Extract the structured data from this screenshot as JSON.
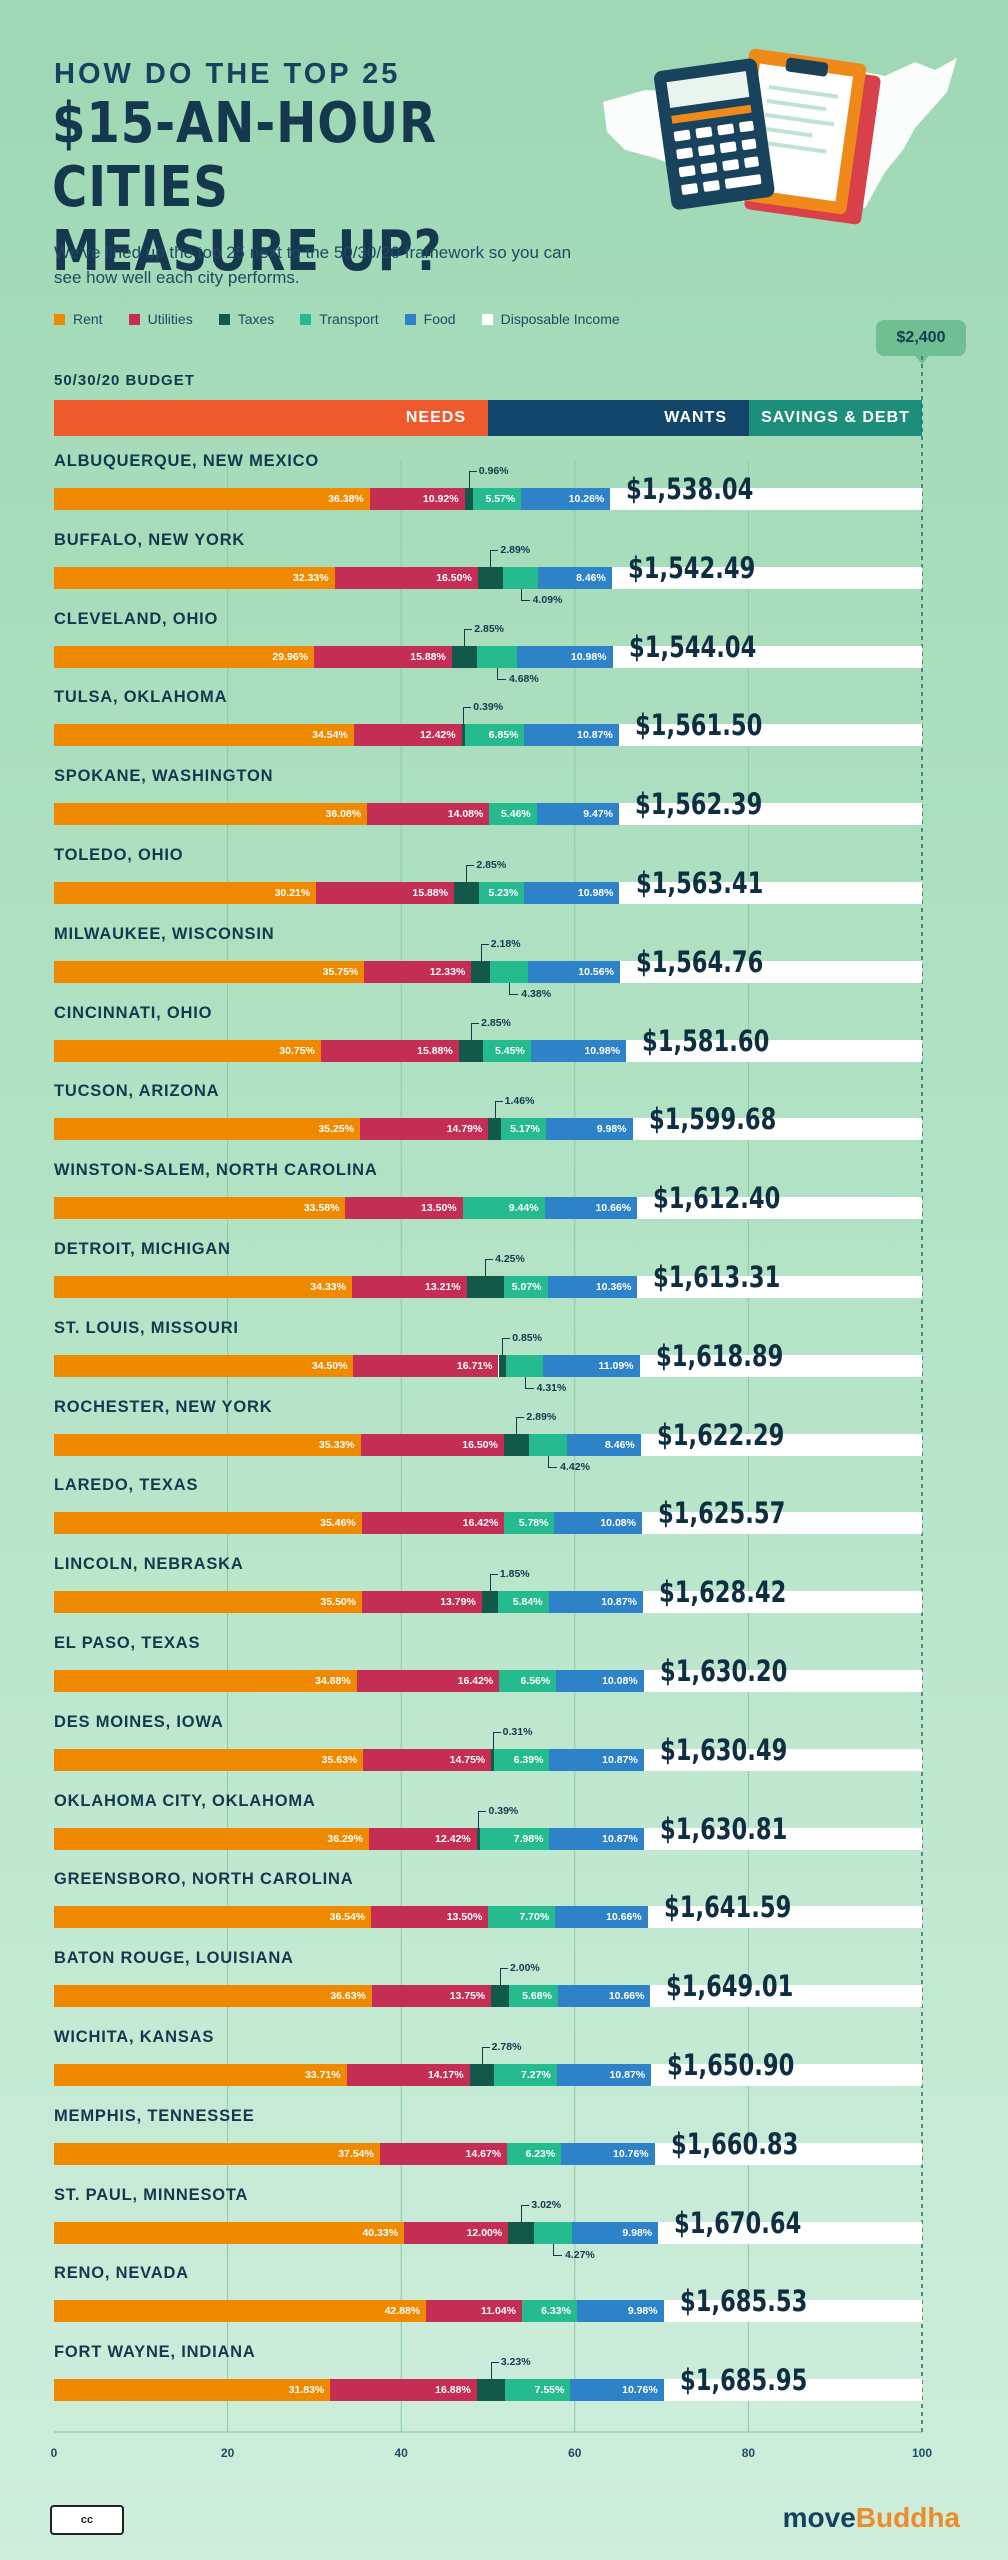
{
  "header": {
    "kicker": "HOW DO THE TOP 25",
    "title": "$15-AN-HOUR CITIES MEASURE UP?",
    "subtitle": "We've lined up the top 25 next to the 50/30/20 framework so you can see how well each city performs."
  },
  "legend": [
    {
      "label": "Rent",
      "color": "#ef8a00"
    },
    {
      "label": "Utilities",
      "color": "#c42e55"
    },
    {
      "label": "Taxes",
      "color": "#13594a"
    },
    {
      "label": "Transport",
      "color": "#25bb8f"
    },
    {
      "label": "Food",
      "color": "#2d82c8"
    },
    {
      "label": "Disposable Income",
      "color": "#ffffff"
    }
  ],
  "max_label": "$2,400",
  "budget": {
    "label": "50/30/20 BUDGET",
    "needs": "NEEDS",
    "wants": "WANTS",
    "savings": "SAVINGS & DEBT",
    "colors": {
      "needs": "#ee5a2c",
      "wants": "#11466a",
      "savings": "#1e8e7c"
    }
  },
  "chart_data": {
    "type": "bar",
    "orientation": "horizontal-stacked",
    "x_ticks": [
      "0",
      "20",
      "40",
      "60",
      "80",
      "100"
    ],
    "xlim": [
      0,
      100
    ],
    "series": [
      "Rent",
      "Utilities",
      "Taxes",
      "Transport",
      "Food",
      "Disposable Income"
    ],
    "rows": [
      {
        "city": "ALBUQUERQUE, NEW MEXICO",
        "rent": 36.38,
        "util": 10.92,
        "tax": 0.96,
        "trans": 5.57,
        "food": 10.26,
        "total": "$1,538.04",
        "labels": {
          "rent": "36.38%",
          "util": "10.92%",
          "tax": "0.96%",
          "trans": "5.57%",
          "food": "10.26%"
        },
        "tax_callout": "above",
        "trans_callout": "none"
      },
      {
        "city": "BUFFALO, NEW YORK",
        "rent": 32.33,
        "util": 16.5,
        "tax": 2.89,
        "trans": 4.09,
        "food": 8.46,
        "total": "$1,542.49",
        "labels": {
          "rent": "32.33%",
          "util": "16.50%",
          "tax": "2.89%",
          "trans": "4.09%",
          "food": "8.46%"
        },
        "tax_callout": "above",
        "trans_callout": "below"
      },
      {
        "city": "CLEVELAND, OHIO",
        "rent": 29.96,
        "util": 15.88,
        "tax": 2.85,
        "trans": 4.68,
        "food": 10.98,
        "total": "$1,544.04",
        "labels": {
          "rent": "29.96%",
          "util": "15.88%",
          "tax": "2.85%",
          "trans": "4.68%",
          "food": "10.98%"
        },
        "tax_callout": "above",
        "trans_callout": "below"
      },
      {
        "city": "TULSA, OKLAHOMA",
        "rent": 34.54,
        "util": 12.42,
        "tax": 0.39,
        "trans": 6.85,
        "food": 10.87,
        "total": "$1,561.50",
        "labels": {
          "rent": "34.54%",
          "util": "12.42%",
          "tax": "0.39%",
          "trans": "6.85%",
          "food": "10.87%"
        },
        "tax_callout": "above",
        "trans_callout": "none"
      },
      {
        "city": "SPOKANE, WASHINGTON",
        "rent": 36.08,
        "util": 14.08,
        "tax": 0,
        "trans": 5.46,
        "food": 9.47,
        "total": "$1,562.39",
        "labels": {
          "rent": "36.08%",
          "util": "14.08%",
          "tax": "",
          "trans": "5.46%",
          "food": "9.47%"
        },
        "tax_callout": "none",
        "trans_callout": "none"
      },
      {
        "city": "TOLEDO, OHIO",
        "rent": 30.21,
        "util": 15.88,
        "tax": 2.85,
        "trans": 5.23,
        "food": 10.98,
        "total": "$1,563.41",
        "labels": {
          "rent": "30.21%",
          "util": "15.88%",
          "tax": "2.85%",
          "trans": "5.23%",
          "food": "10.98%"
        },
        "tax_callout": "above",
        "trans_callout": "none"
      },
      {
        "city": "MILWAUKEE, WISCONSIN",
        "rent": 35.75,
        "util": 12.33,
        "tax": 2.18,
        "trans": 4.38,
        "food": 10.56,
        "total": "$1,564.76",
        "labels": {
          "rent": "35.75%",
          "util": "12.33%",
          "tax": "2.18%",
          "trans": "4.38%",
          "food": "10.56%"
        },
        "tax_callout": "above",
        "trans_callout": "below"
      },
      {
        "city": "CINCINNATI, OHIO",
        "rent": 30.75,
        "util": 15.88,
        "tax": 2.85,
        "trans": 5.45,
        "food": 10.98,
        "total": "$1,581.60",
        "labels": {
          "rent": "30.75%",
          "util": "15.88%",
          "tax": "2.85%",
          "trans": "5.45%",
          "food": "10.98%"
        },
        "tax_callout": "above",
        "trans_callout": "none"
      },
      {
        "city": "TUCSON, ARIZONA",
        "rent": 35.25,
        "util": 14.79,
        "tax": 1.46,
        "trans": 5.17,
        "food": 9.98,
        "total": "$1,599.68",
        "labels": {
          "rent": "35.25%",
          "util": "14.79%",
          "tax": "1.46%",
          "trans": "5.17%",
          "food": "9.98%"
        },
        "tax_callout": "above",
        "trans_callout": "none"
      },
      {
        "city": "WINSTON-SALEM, NORTH CAROLINA",
        "rent": 33.58,
        "util": 13.5,
        "tax": 0,
        "trans": 9.44,
        "food": 10.66,
        "total": "$1,612.40",
        "labels": {
          "rent": "33.58%",
          "util": "13.50%",
          "tax": "",
          "trans": "9.44%",
          "food": "10.66%"
        },
        "tax_callout": "none",
        "trans_callout": "none"
      },
      {
        "city": "DETROIT, MICHIGAN",
        "rent": 34.33,
        "util": 13.21,
        "tax": 4.25,
        "trans": 5.07,
        "food": 10.36,
        "total": "$1,613.31",
        "labels": {
          "rent": "34.33%",
          "util": "13.21%",
          "tax": "4.25%",
          "trans": "5.07%",
          "food": "10.36%"
        },
        "tax_callout": "above",
        "trans_callout": "none"
      },
      {
        "city": "ST. LOUIS, MISSOURI",
        "rent": 34.5,
        "util": 16.71,
        "tax": 0.85,
        "trans": 4.31,
        "food": 11.09,
        "total": "$1,618.89",
        "labels": {
          "rent": "34.50%",
          "util": "16.71%",
          "tax": "0.85%",
          "trans": "4.31%",
          "food": "11.09%"
        },
        "tax_callout": "above",
        "trans_callout": "below"
      },
      {
        "city": "ROCHESTER, NEW YORK",
        "rent": 35.33,
        "util": 16.5,
        "tax": 2.89,
        "trans": 4.42,
        "food": 8.46,
        "total": "$1,622.29",
        "labels": {
          "rent": "35.33%",
          "util": "16.50%",
          "tax": "2.89%",
          "trans": "4.42%",
          "food": "8.46%"
        },
        "tax_callout": "above",
        "trans_callout": "below"
      },
      {
        "city": "LAREDO, TEXAS",
        "rent": 35.46,
        "util": 16.42,
        "tax": 0,
        "trans": 5.78,
        "food": 10.08,
        "total": "$1,625.57",
        "labels": {
          "rent": "35.46%",
          "util": "16.42%",
          "tax": "",
          "trans": "5.78%",
          "food": "10.08%"
        },
        "tax_callout": "none",
        "trans_callout": "none"
      },
      {
        "city": "LINCOLN, NEBRASKA",
        "rent": 35.5,
        "util": 13.79,
        "tax": 1.85,
        "trans": 5.84,
        "food": 10.87,
        "total": "$1,628.42",
        "labels": {
          "rent": "35.50%",
          "util": "13.79%",
          "tax": "1.85%",
          "trans": "5.84%",
          "food": "10.87%"
        },
        "tax_callout": "above",
        "trans_callout": "none"
      },
      {
        "city": "EL PASO, TEXAS",
        "rent": 34.88,
        "util": 16.42,
        "tax": 0,
        "trans": 6.56,
        "food": 10.08,
        "total": "$1,630.20",
        "labels": {
          "rent": "34.88%",
          "util": "16.42%",
          "tax": "",
          "trans": "6.56%",
          "food": "10.08%"
        },
        "tax_callout": "none",
        "trans_callout": "none"
      },
      {
        "city": "DES MOINES, IOWA",
        "rent": 35.63,
        "util": 14.75,
        "tax": 0.31,
        "trans": 6.39,
        "food": 10.87,
        "total": "$1,630.49",
        "labels": {
          "rent": "35.63%",
          "util": "14.75%",
          "tax": "0.31%",
          "trans": "6.39%",
          "food": "10.87%"
        },
        "tax_callout": "above",
        "trans_callout": "none"
      },
      {
        "city": "OKLAHOMA CITY, OKLAHOMA",
        "rent": 36.29,
        "util": 12.42,
        "tax": 0.39,
        "trans": 7.98,
        "food": 10.87,
        "total": "$1,630.81",
        "labels": {
          "rent": "36.29%",
          "util": "12.42%",
          "tax": "0.39%",
          "trans": "7.98%",
          "food": "10.87%"
        },
        "tax_callout": "above",
        "trans_callout": "none"
      },
      {
        "city": "GREENSBORO, NORTH CAROLINA",
        "rent": 36.54,
        "util": 13.5,
        "tax": 0,
        "trans": 7.7,
        "food": 10.66,
        "total": "$1,641.59",
        "labels": {
          "rent": "36.54%",
          "util": "13.50%",
          "tax": "",
          "trans": "7.70%",
          "food": "10.66%"
        },
        "tax_callout": "none",
        "trans_callout": "none"
      },
      {
        "city": "BATON ROUGE, LOUISIANA",
        "rent": 36.63,
        "util": 13.75,
        "tax": 2.0,
        "trans": 5.68,
        "food": 10.66,
        "total": "$1,649.01",
        "labels": {
          "rent": "36.63%",
          "util": "13.75%",
          "tax": "2.00%",
          "trans": "5.68%",
          "food": "10.66%"
        },
        "tax_callout": "above",
        "trans_callout": "none"
      },
      {
        "city": "WICHITA, KANSAS",
        "rent": 33.71,
        "util": 14.17,
        "tax": 2.78,
        "trans": 7.27,
        "food": 10.87,
        "total": "$1,650.90",
        "labels": {
          "rent": "33.71%",
          "util": "14.17%",
          "tax": "2.78%",
          "trans": "7.27%",
          "food": "10.87%"
        },
        "tax_callout": "above",
        "trans_callout": "none"
      },
      {
        "city": "MEMPHIS, TENNESSEE",
        "rent": 37.54,
        "util": 14.67,
        "tax": 0,
        "trans": 6.23,
        "food": 10.76,
        "total": "$1,660.83",
        "labels": {
          "rent": "37.54%",
          "util": "14.67%",
          "tax": "",
          "trans": "6.23%",
          "food": "10.76%"
        },
        "tax_callout": "none",
        "trans_callout": "none"
      },
      {
        "city": "ST. PAUL, MINNESOTA",
        "rent": 40.33,
        "util": 12.0,
        "tax": 3.02,
        "trans": 4.27,
        "food": 9.98,
        "total": "$1,670.64",
        "labels": {
          "rent": "40.33%",
          "util": "12.00%",
          "tax": "3.02%",
          "trans": "4.27%",
          "food": "9.98%"
        },
        "tax_callout": "above",
        "trans_callout": "below"
      },
      {
        "city": "RENO, NEVADA",
        "rent": 42.88,
        "util": 11.04,
        "tax": 0,
        "trans": 6.33,
        "food": 9.98,
        "total": "$1,685.53",
        "labels": {
          "rent": "42.88%",
          "util": "11.04%",
          "tax": "",
          "trans": "6.33%",
          "food": "9.98%"
        },
        "tax_callout": "none",
        "trans_callout": "none"
      },
      {
        "city": "FORT WAYNE, INDIANA",
        "rent": 31.83,
        "util": 16.88,
        "tax": 3.23,
        "trans": 7.55,
        "food": 10.76,
        "total": "$1,685.95",
        "labels": {
          "rent": "31.83%",
          "util": "16.88%",
          "tax": "3.23%",
          "trans": "7.55%",
          "food": "10.76%"
        },
        "tax_callout": "above",
        "trans_callout": "none"
      }
    ]
  },
  "footer": {
    "license": "cc",
    "brand_part1": "move",
    "brand_part2": "Buddha"
  }
}
